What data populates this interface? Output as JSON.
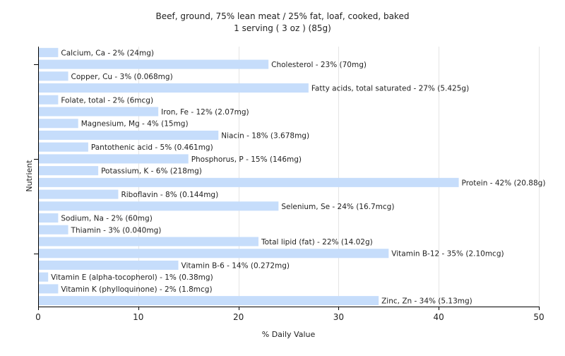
{
  "chart_data": {
    "type": "bar",
    "orientation": "horizontal",
    "title": "Beef, ground, 75% lean meat / 25% fat, loaf, cooked, baked",
    "subtitle": "1 serving ( 3 oz ) (85g)",
    "xlabel": "% Daily Value",
    "ylabel": "Nutrient",
    "xlim": [
      0,
      50
    ],
    "xticks": [
      0,
      10,
      20,
      30,
      40,
      50
    ],
    "grid": true,
    "bar_color": "#c6ddfb",
    "categories": [
      "Calcium, Ca",
      "Cholesterol",
      "Copper, Cu",
      "Fatty acids, total saturated",
      "Folate, total",
      "Iron, Fe",
      "Magnesium, Mg",
      "Niacin",
      "Pantothenic acid",
      "Phosphorus, P",
      "Potassium, K",
      "Protein",
      "Riboflavin",
      "Selenium, Se",
      "Sodium, Na",
      "Thiamin",
      "Total lipid (fat)",
      "Vitamin B-12",
      "Vitamin B-6",
      "Vitamin E (alpha-tocopherol)",
      "Vitamin K (phylloquinone)",
      "Zinc, Zn"
    ],
    "values": [
      2,
      23,
      3,
      27,
      2,
      12,
      4,
      18,
      5,
      15,
      6,
      42,
      8,
      24,
      2,
      3,
      22,
      35,
      14,
      1,
      2,
      34
    ],
    "labels": [
      "Calcium, Ca - 2% (24mg)",
      "Cholesterol - 23% (70mg)",
      "Copper, Cu - 3% (0.068mg)",
      "Fatty acids, total saturated - 27% (5.425g)",
      "Folate, total - 2% (6mcg)",
      "Iron, Fe - 12% (2.07mg)",
      "Magnesium, Mg - 4% (15mg)",
      "Niacin - 18% (3.678mg)",
      "Pantothenic acid - 5% (0.461mg)",
      "Phosphorus, P - 15% (146mg)",
      "Potassium, K - 6% (218mg)",
      "Protein - 42% (20.88g)",
      "Riboflavin - 8% (0.144mg)",
      "Selenium, Se - 24% (16.7mcg)",
      "Sodium, Na - 2% (60mg)",
      "Thiamin - 3% (0.040mg)",
      "Total lipid (fat) - 22% (14.02g)",
      "Vitamin B-12 - 35% (2.10mcg)",
      "Vitamin B-6 - 14% (0.272mg)",
      "Vitamin E (alpha-tocopherol) - 1% (0.38mg)",
      "Vitamin K (phylloquinone) - 2% (1.8mcg)",
      "Zinc, Zn - 34% (5.13mg)"
    ]
  }
}
